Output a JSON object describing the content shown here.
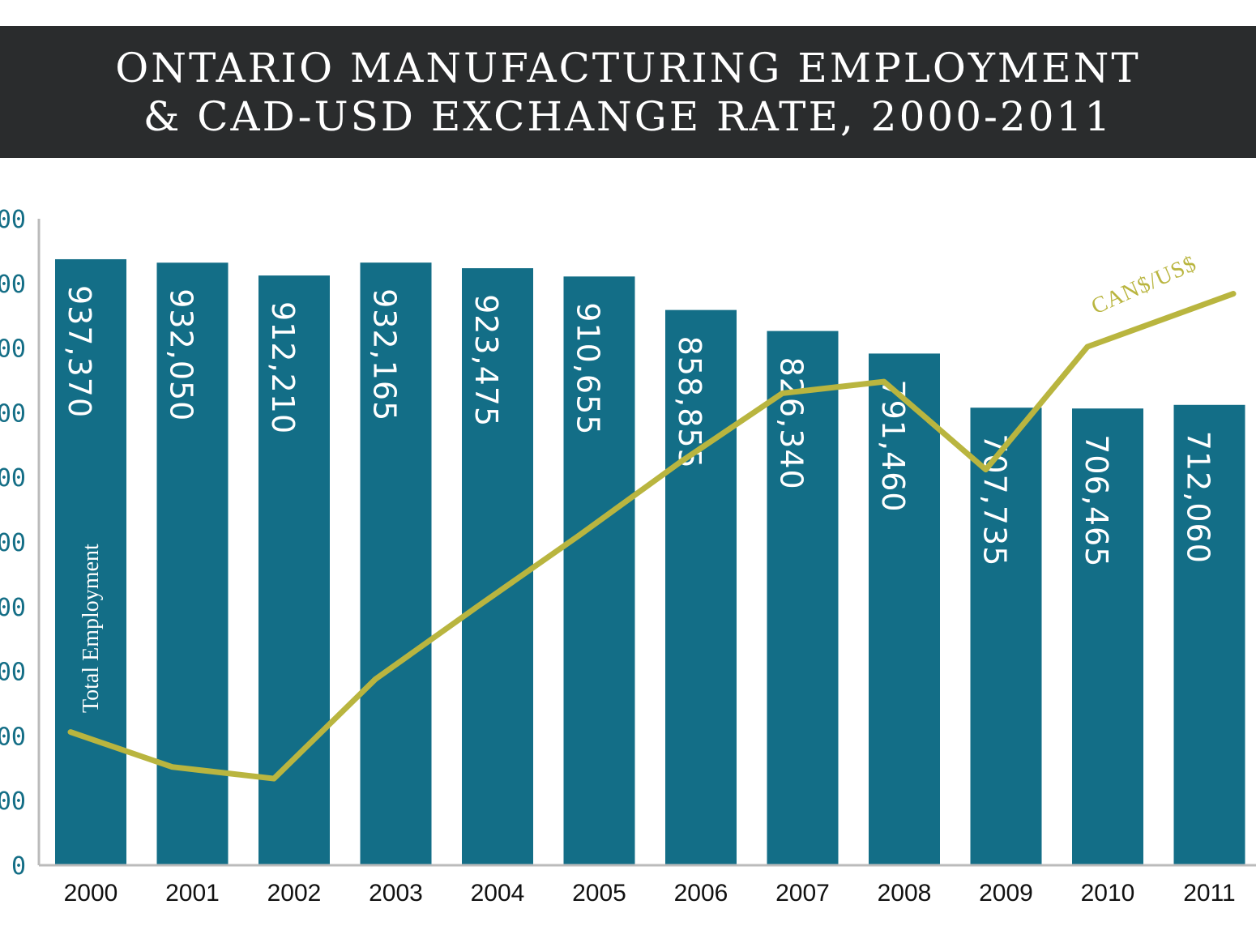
{
  "title": {
    "line1": "ONTARIO MANUFACTURING EMPLOYMENT",
    "line2": "& CAD-USD EXCHANGE RATE, 2000-2011"
  },
  "colors": {
    "bar": "#136e87",
    "line": "#b9b53f",
    "title_bg": "#2a2c2d",
    "axis": "#bbbbbb",
    "tick_text": "#146e86"
  },
  "chart_data": {
    "type": "bar",
    "title": "ONTARIO MANUFACTURING EMPLOYMENT & CAD-USD EXCHANGE RATE, 2000-2011",
    "categories": [
      "2000",
      "2001",
      "2002",
      "2003",
      "2004",
      "2005",
      "2006",
      "2007",
      "2008",
      "2009",
      "2010",
      "2011"
    ],
    "y_tick_labels": [
      "0",
      "00",
      "00",
      "00",
      "00",
      "00",
      "00",
      "00",
      "00",
      "00",
      "00"
    ],
    "series": [
      {
        "name": "Total Employment",
        "type": "bar",
        "values": [
          937370,
          932050,
          912210,
          932165,
          923475,
          910655,
          858855,
          826340,
          791460,
          707735,
          706465,
          712060
        ],
        "labels": [
          "937,370",
          "932,050",
          "912,210",
          "932,165",
          "923,475",
          "910,655",
          "858,855",
          "826,340",
          "791,460",
          "707,735",
          "706,465",
          "712,060"
        ]
      },
      {
        "name": "CAN$/US$",
        "type": "line",
        "values": [
          0.673,
          0.646,
          0.637,
          0.714,
          0.77,
          0.825,
          0.882,
          0.935,
          0.944,
          0.876,
          0.971,
          1.012
        ]
      }
    ],
    "ylim": [
      0,
      1000000
    ],
    "ylim_right": [
      0.57,
      1.07
    ],
    "grid": false
  }
}
